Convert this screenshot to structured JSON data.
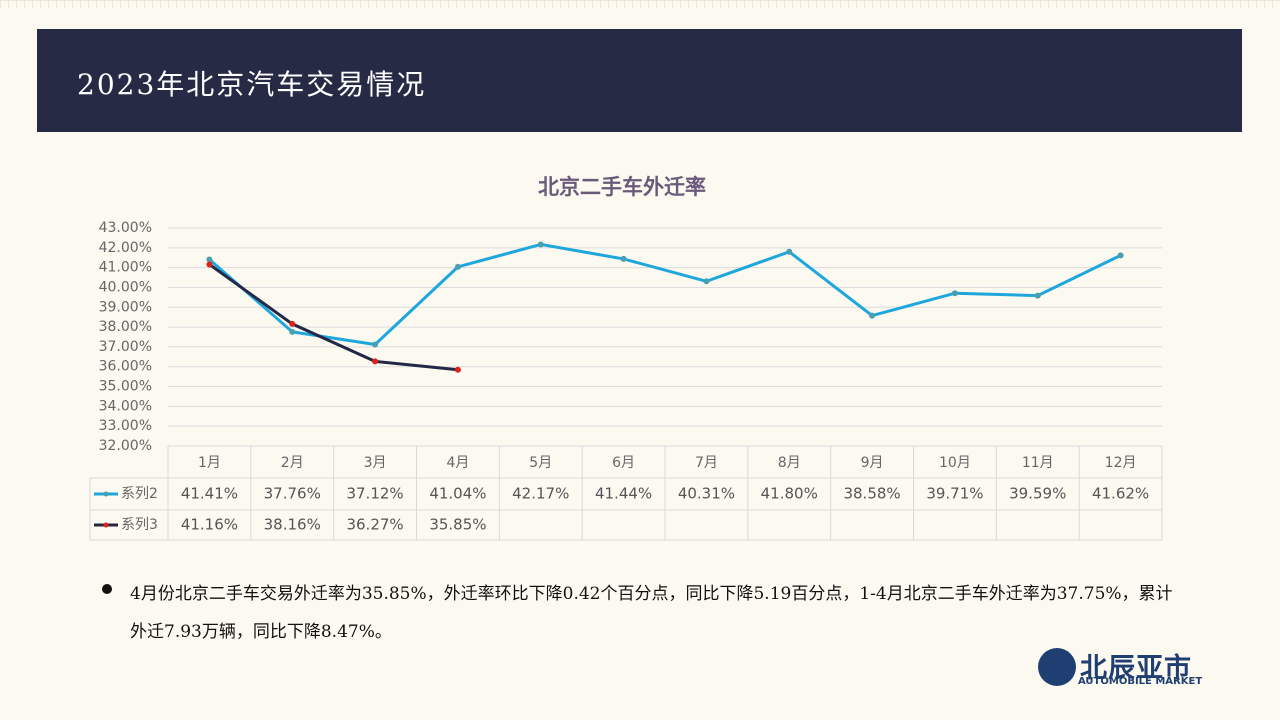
{
  "header": {
    "title": "2023年北京汽车交易情况"
  },
  "chart_data": {
    "type": "line",
    "title": "北京二手车外迁率",
    "categories": [
      "1月",
      "2月",
      "3月",
      "4月",
      "5月",
      "6月",
      "7月",
      "8月",
      "9月",
      "10月",
      "11月",
      "12月"
    ],
    "series": [
      {
        "name": "系列2",
        "color": "#1ea7dd",
        "marker_color": "#4a9fae",
        "values": [
          41.41,
          37.76,
          37.12,
          41.04,
          42.17,
          41.44,
          40.31,
          41.8,
          38.58,
          39.71,
          39.59,
          41.62
        ],
        "value_labels": [
          "41.41%",
          "37.76%",
          "37.12%",
          "41.04%",
          "42.17%",
          "41.44%",
          "40.31%",
          "41.80%",
          "38.58%",
          "39.71%",
          "39.59%",
          "41.62%"
        ]
      },
      {
        "name": "系列3",
        "color": "#232846",
        "marker_color": "#e0201a",
        "values": [
          41.16,
          38.16,
          36.27,
          35.85,
          null,
          null,
          null,
          null,
          null,
          null,
          null,
          null
        ],
        "value_labels": [
          "41.16%",
          "38.16%",
          "36.27%",
          "35.85%",
          null,
          null,
          null,
          null,
          null,
          null,
          null,
          null
        ]
      }
    ],
    "ylim": [
      32,
      43
    ],
    "yticks": [
      {
        "value": 32,
        "label": "32.00%"
      },
      {
        "value": 33,
        "label": "33.00%"
      },
      {
        "value": 34,
        "label": "34.00%"
      },
      {
        "value": 35,
        "label": "35.00%"
      },
      {
        "value": 36,
        "label": "36.00%"
      },
      {
        "value": 37,
        "label": "37.00%"
      },
      {
        "value": 38,
        "label": "38.00%"
      },
      {
        "value": 39,
        "label": "39.00%"
      },
      {
        "value": 40,
        "label": "40.00%"
      },
      {
        "value": 41,
        "label": "41.00%"
      },
      {
        "value": 42,
        "label": "42.00%"
      },
      {
        "value": 43,
        "label": "43.00%"
      }
    ],
    "grid": true
  },
  "bullet": {
    "text": "4月份北京二手车交易外迁率为35.85%，外迁率环比下降0.42个百分点，同比下降5.19百分点，1-4月北京二手车外迁率为37.75%，累计外迁7.93万辆，同比下降8.47%。"
  },
  "logo": {
    "name": "北辰亚市",
    "subtitle": "AUTOMOBILE MARKET"
  }
}
